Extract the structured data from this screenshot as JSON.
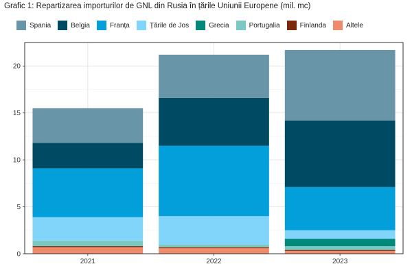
{
  "title": "Grafic 1: Repartizarea importurilor de GNL din Rusia în țările Uniunii Europene (mil. mc)",
  "chart_data": {
    "type": "bar",
    "stacked": true,
    "title": "Grafic 1: Repartizarea importurilor de GNL din Rusia în țările Uniunii Europene (mil. mc)",
    "xlabel": "",
    "ylabel": "",
    "categories": [
      "2021",
      "2022",
      "2023"
    ],
    "ylim": [
      0,
      22.5
    ],
    "yticks": [
      0,
      5,
      10,
      15,
      20
    ],
    "grid": true,
    "legend_position": "top",
    "series": [
      {
        "name": "Altele",
        "color": "#EF8A6A",
        "values": [
          0.7,
          0.6,
          0.3
        ]
      },
      {
        "name": "Finlanda",
        "color": "#7A2A0A",
        "values": [
          0.1,
          0.1,
          0.1
        ]
      },
      {
        "name": "Portugalia",
        "color": "#7CC8C2",
        "values": [
          0.6,
          0.3,
          0.4
        ]
      },
      {
        "name": "Grecia",
        "color": "#00897B",
        "values": [
          0.0,
          0.0,
          0.8
        ]
      },
      {
        "name": "Țările de Jos",
        "color": "#81D4FA",
        "values": [
          2.5,
          3.0,
          0.9
        ]
      },
      {
        "name": "Franța",
        "color": "#039FDB",
        "values": [
          5.2,
          7.5,
          4.6
        ]
      },
      {
        "name": "Belgia",
        "color": "#004B63",
        "values": [
          2.7,
          5.1,
          7.1
        ]
      },
      {
        "name": "Spania",
        "color": "#6995A8",
        "values": [
          3.7,
          4.6,
          7.5
        ]
      }
    ],
    "legend_order": [
      "Spania",
      "Belgia",
      "Franța",
      "Țările de Jos",
      "Grecia",
      "Portugalia",
      "Finlanda",
      "Altele"
    ]
  }
}
